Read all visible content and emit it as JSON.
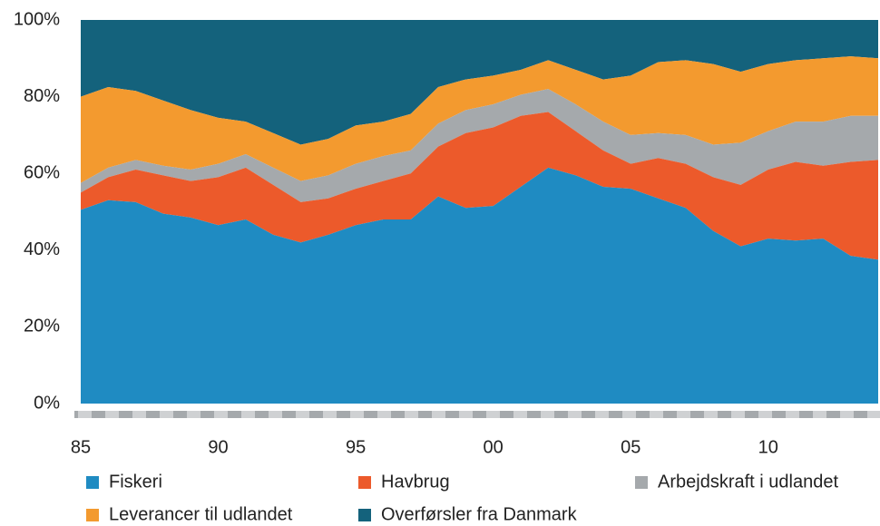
{
  "chart_data": {
    "type": "stacked_area",
    "categories": [
      "85",
      null,
      null,
      null,
      null,
      "90",
      null,
      null,
      null,
      null,
      "95",
      null,
      null,
      null,
      null,
      "00",
      null,
      null,
      null,
      null,
      "05",
      null,
      null,
      null,
      null,
      "10",
      null,
      null,
      null,
      null
    ],
    "series": [
      {
        "name": "Fiskeri",
        "color": "#1f8bc2",
        "values": [
          50.5,
          53,
          52.5,
          49.5,
          48.5,
          46.5,
          48,
          44,
          42,
          44,
          46.5,
          48,
          48,
          54,
          51,
          51.5,
          56.5,
          61.5,
          59.5,
          56.5,
          56,
          53.5,
          51,
          45,
          41,
          43,
          42.5,
          43,
          38.5,
          37.5
        ]
      },
      {
        "name": "Havbrug",
        "color": "#ec5a2b",
        "values": [
          4.5,
          6,
          8.5,
          10,
          9.5,
          12.5,
          13.5,
          13,
          10.5,
          9.5,
          9.5,
          10,
          12,
          13,
          19.5,
          20.5,
          18.5,
          14.5,
          11.5,
          9.5,
          6.5,
          10.5,
          11.5,
          14,
          16,
          18,
          20.5,
          19,
          24.5,
          26
        ]
      },
      {
        "name": "Arbejdskraft i udlandet",
        "color": "#a5a9ac",
        "values": [
          2.5,
          2.5,
          2.5,
          2.5,
          3,
          3.5,
          3.5,
          4.5,
          5.5,
          6,
          6.5,
          6.5,
          6,
          6,
          6,
          6,
          5.5,
          6,
          7,
          7.5,
          7.5,
          6.5,
          7.5,
          8.5,
          11,
          10,
          10.5,
          11.5,
          12,
          11.5
        ]
      },
      {
        "name": "Leverancer til udlandet",
        "color": "#f39a2f",
        "values": [
          22.5,
          21,
          18,
          17,
          15.5,
          12,
          8.5,
          9,
          9.5,
          9.5,
          10,
          9,
          9.5,
          9.5,
          8,
          7.5,
          6.5,
          7.5,
          9,
          11,
          15.5,
          18.5,
          19.5,
          21,
          18.5,
          17.5,
          16,
          16.5,
          15.5,
          15
        ]
      },
      {
        "name": "Overførsler fra Danmark",
        "color": "#14627c",
        "values": [
          20,
          17.5,
          18.5,
          21,
          23.5,
          25.5,
          26.5,
          29.5,
          32.5,
          31,
          27.5,
          26.5,
          24.5,
          17.5,
          15.5,
          14.5,
          13,
          10.5,
          13,
          15.5,
          14.5,
          11,
          10.5,
          11.5,
          13.5,
          11.5,
          10.5,
          10,
          9.5,
          10
        ]
      }
    ],
    "ylim": [
      0,
      100
    ],
    "yticks": [
      {
        "value": 0,
        "label": "0%"
      },
      {
        "value": 20,
        "label": "20%"
      },
      {
        "value": 40,
        "label": "40%"
      },
      {
        "value": 60,
        "label": "60%"
      },
      {
        "value": 80,
        "label": "80%"
      },
      {
        "value": 100,
        "label": "100%"
      }
    ],
    "grid": false
  }
}
